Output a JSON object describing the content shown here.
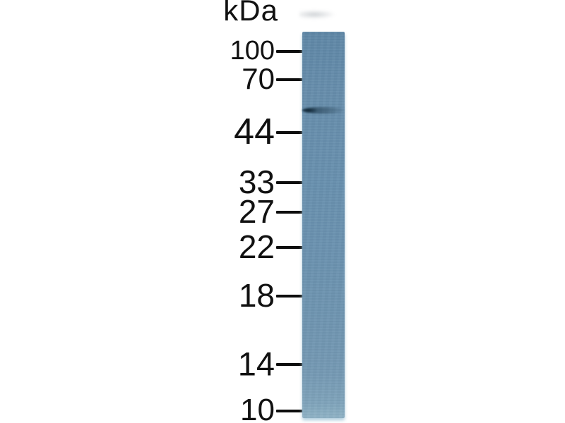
{
  "figure": {
    "type": "western-blot",
    "unit_label": "kDa",
    "markers": [
      {
        "label": "100",
        "kda": 100
      },
      {
        "label": "70",
        "kda": 70
      },
      {
        "label": "44",
        "kda": 44
      },
      {
        "label": "33",
        "kda": 33
      },
      {
        "label": "27",
        "kda": 27
      },
      {
        "label": "22",
        "kda": 22
      },
      {
        "label": "18",
        "kda": 18
      },
      {
        "label": "14",
        "kda": 14
      },
      {
        "label": "10",
        "kda": 10
      }
    ],
    "lane": {
      "color": "#6890ae",
      "band": {
        "present": true,
        "between_markers": "70-44",
        "approx_kda": 50,
        "color": "#2e4e62",
        "fade_direction": "darker-left-to-lighter-right"
      }
    },
    "colors": {
      "background": "#ffffff",
      "marker_text": "#111111",
      "tick": "#0d0d0d"
    }
  }
}
